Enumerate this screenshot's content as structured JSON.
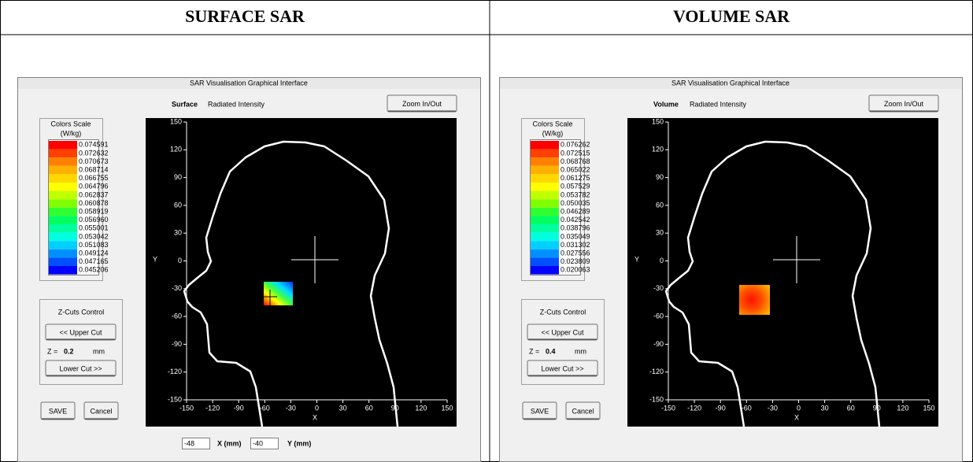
{
  "table": {
    "headers": [
      "SURFACE SAR",
      "VOLUME SAR"
    ]
  },
  "panels": [
    {
      "window_title": "SAR Visualisation Graphical Interface",
      "mode": "Surface",
      "mode_subtitle": "Radiated Intensity",
      "zoom_button": "Zoom In/Out",
      "scale_title": "Colors Scale",
      "scale_unit": "(W/kg)",
      "scale_values": [
        "0.074591",
        "0.072632",
        "0.070673",
        "0.068714",
        "0.066755",
        "0.064796",
        "0.062837",
        "0.060878",
        "0.058919",
        "0.056960",
        "0.055001",
        "0.053042",
        "0.051083",
        "0.049124",
        "0.047165",
        "0.045206"
      ],
      "zcuts_title": "Z-Cuts Control",
      "upper_cut": "<< Upper Cut",
      "upper_cut_enabled": false,
      "z_label": "Z =",
      "z_value": "0.2",
      "z_unit": "mm",
      "lower_cut": "Lower Cut >>",
      "lower_cut_enabled": false,
      "save": "SAVE",
      "cancel": "Cancel",
      "x_label": "X",
      "y_label": "Y",
      "xlim": [
        -150,
        150
      ],
      "ylim": [
        -150,
        150
      ],
      "xticks": [
        -150,
        -120,
        -90,
        -60,
        -30,
        0,
        30,
        60,
        90,
        120,
        150
      ],
      "yticks": [
        150,
        120,
        90,
        60,
        30,
        0,
        -30,
        -60,
        -90,
        -120,
        -150
      ],
      "footer": {
        "x_input": "-48",
        "x_label": "X (mm)",
        "y_input": "-40",
        "y_label": "Y (mm)"
      }
    },
    {
      "window_title": "SAR Visualisation Graphical Interface",
      "mode": "Volume",
      "mode_subtitle": "Radiated Intensity",
      "zoom_button": "Zoom In/Out",
      "scale_title": "Colors Scale",
      "scale_unit": "(W/kg)",
      "scale_values": [
        "0.076262",
        "0.072515",
        "0.068768",
        "0.065022",
        "0.061275",
        "0.057529",
        "0.053782",
        "0.050035",
        "0.046289",
        "0.042542",
        "0.038796",
        "0.035049",
        "0.031302",
        "0.027556",
        "0.023809",
        "0.020063"
      ],
      "zcuts_title": "Z-Cuts Control",
      "upper_cut": "<< Upper Cut",
      "upper_cut_enabled": true,
      "z_label": "Z =",
      "z_value": "0.4",
      "z_unit": "mm",
      "lower_cut": "Lower Cut >>",
      "lower_cut_enabled": false,
      "save": "SAVE",
      "cancel": "Cancel",
      "x_label": "X",
      "y_label": "Y",
      "xlim": [
        -150,
        150
      ],
      "ylim": [
        -150,
        150
      ],
      "xticks": [
        -150,
        -120,
        -90,
        -60,
        -30,
        0,
        30,
        60,
        90,
        120,
        150
      ],
      "yticks": [
        150,
        120,
        90,
        60,
        30,
        0,
        -30,
        -60,
        -90,
        -120,
        -150
      ]
    }
  ]
}
